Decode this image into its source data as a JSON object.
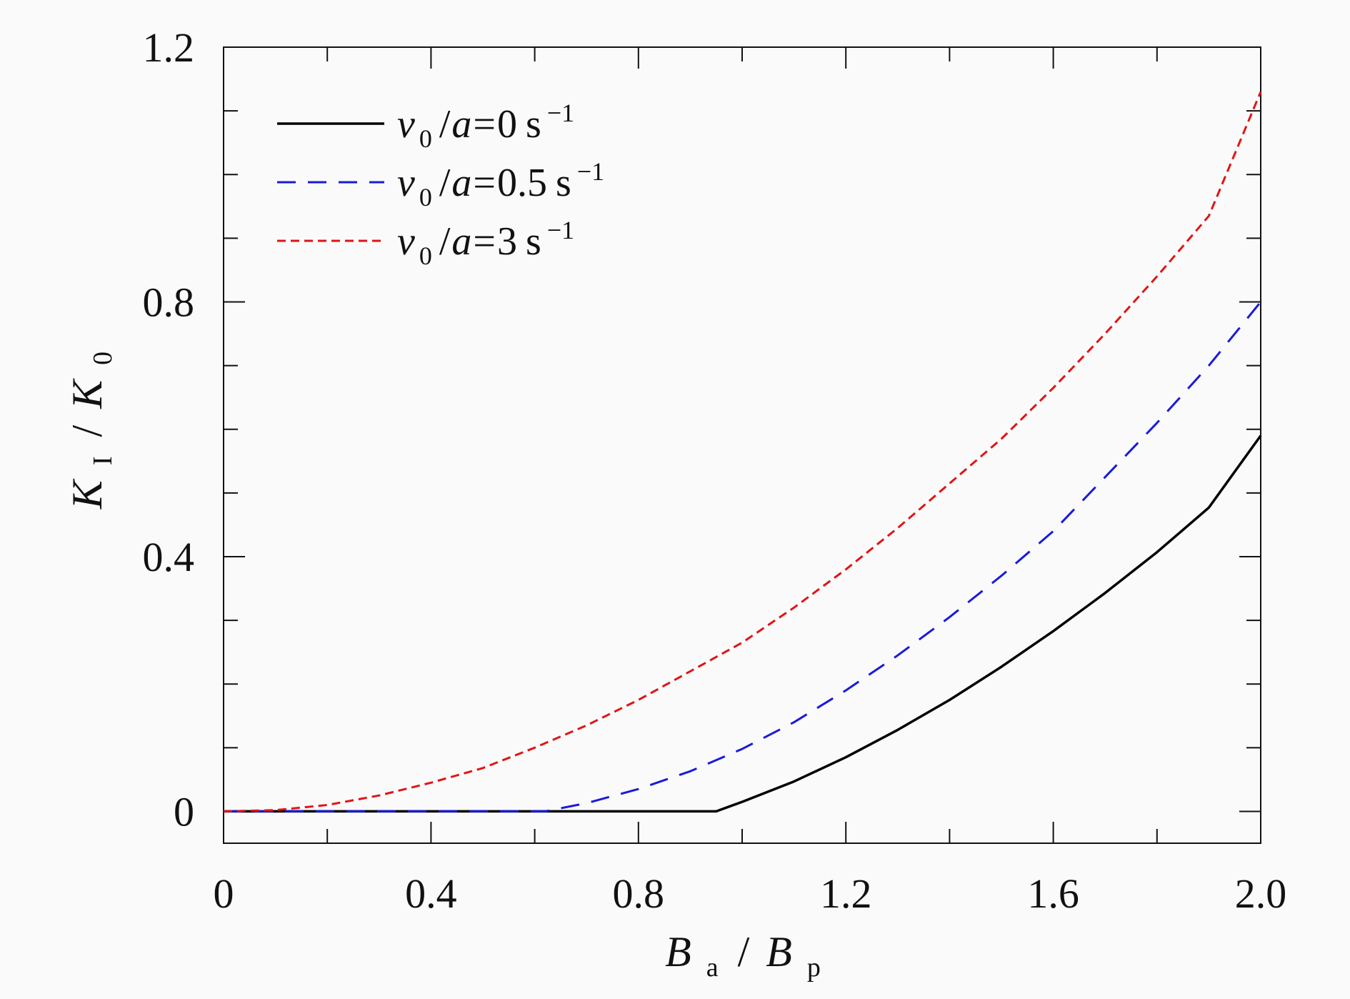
{
  "chart_data": {
    "type": "line",
    "xlabel": {
      "var1": "B",
      "sub1": "a",
      "sep": "/",
      "var2": "B",
      "sub2": "p"
    },
    "ylabel": {
      "var1": "K",
      "sub1": "I",
      "sep": "/",
      "var2": "K",
      "sub2": "0"
    },
    "xlim": [
      0,
      2.0
    ],
    "ylim": [
      -0.05,
      1.2
    ],
    "x_ticks": [
      {
        "value": 0,
        "label": "0"
      },
      {
        "value": 0.4,
        "label": "0.4"
      },
      {
        "value": 0.8,
        "label": "0.8"
      },
      {
        "value": 1.2,
        "label": "1.2"
      },
      {
        "value": 1.6,
        "label": "1.6"
      },
      {
        "value": 2.0,
        "label": "2.0"
      }
    ],
    "x_minor_ticks": [
      0.2,
      0.6,
      1.0,
      1.4,
      1.8
    ],
    "y_ticks": [
      {
        "value": 0,
        "label": "0"
      },
      {
        "value": 0.4,
        "label": "0.4"
      },
      {
        "value": 0.8,
        "label": "0.8"
      },
      {
        "value": 1.2,
        "label": "1.2"
      }
    ],
    "y_minor_ticks": [
      0.1,
      0.2,
      0.3,
      0.5,
      0.6,
      0.7,
      0.9,
      1.0,
      1.1
    ],
    "grid": false,
    "legend_position": "top-left",
    "series": [
      {
        "name": "v0/a=0 s-1",
        "legend": {
          "v": "v",
          "vsub": "0",
          "sep": "/",
          "a": "a",
          "eq": "=",
          "num": "0",
          "unit": "s",
          "exp": "−1"
        },
        "color": "#000000",
        "dash": "solid",
        "x": [
          0,
          0.2,
          0.4,
          0.6,
          0.8,
          0.95,
          1.0,
          1.1,
          1.2,
          1.3,
          1.4,
          1.5,
          1.6,
          1.7,
          1.8,
          1.9,
          2.0
        ],
        "y": [
          0,
          0,
          0,
          0,
          0,
          0,
          0.015,
          0.047,
          0.085,
          0.128,
          0.175,
          0.227,
          0.283,
          0.343,
          0.407,
          0.477,
          0.59
        ]
      },
      {
        "name": "v0/a=0.5 s-1",
        "legend": {
          "v": "v",
          "vsub": "0",
          "sep": "/",
          "a": "a",
          "eq": "=",
          "num": "0.5",
          "unit": "s",
          "exp": "−1"
        },
        "color": "#1a1adc",
        "dash": "long-dash",
        "x": [
          0,
          0.2,
          0.4,
          0.62,
          0.7,
          0.8,
          0.9,
          1.0,
          1.1,
          1.2,
          1.3,
          1.4,
          1.5,
          1.6,
          1.7,
          1.8,
          1.9,
          2.0
        ],
        "y": [
          0,
          0,
          0,
          0,
          0.013,
          0.035,
          0.063,
          0.098,
          0.14,
          0.19,
          0.245,
          0.305,
          0.37,
          0.44,
          0.525,
          0.61,
          0.7,
          0.8
        ]
      },
      {
        "name": "v0/a=3 s-1",
        "legend": {
          "v": "v",
          "vsub": "0",
          "sep": "/",
          "a": "a",
          "eq": "=",
          "num": "3",
          "unit": "s",
          "exp": "−1"
        },
        "color": "#e01515",
        "dash": "short-dash",
        "x": [
          0,
          0.1,
          0.2,
          0.3,
          0.4,
          0.5,
          0.6,
          0.7,
          0.8,
          0.9,
          1.0,
          1.1,
          1.2,
          1.3,
          1.4,
          1.5,
          1.6,
          1.7,
          1.8,
          1.9,
          2.0
        ],
        "y": [
          0,
          0.002,
          0.01,
          0.025,
          0.045,
          0.068,
          0.1,
          0.135,
          0.175,
          0.22,
          0.265,
          0.32,
          0.38,
          0.445,
          0.515,
          0.585,
          0.665,
          0.75,
          0.84,
          0.935,
          1.13
        ]
      }
    ]
  }
}
